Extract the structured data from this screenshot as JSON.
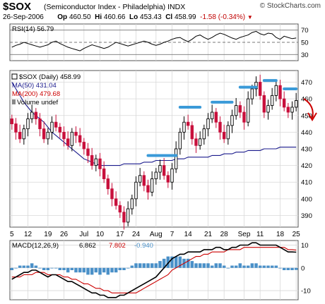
{
  "header": {
    "ticker": "$SOX",
    "name": "(Semiconductor Index - Philadelphia)",
    "exchange": "INDX",
    "brand": "© StockCharts.com",
    "date": "26-Sep-2006",
    "op_label": "Op",
    "op": "460.50",
    "hi_label": "Hi",
    "hi": "460.66",
    "lo_label": "Lo",
    "lo": "453.43",
    "cl_label": "Cl",
    "cl": "458.99",
    "change": "-1.58 (-0.34%)",
    "change_marker": "▼"
  },
  "colors": {
    "up": "#000000",
    "down": "#c8103c",
    "ma50": "#1a1a8c",
    "ma200": "#cc0000",
    "volume": "#3a8ac8",
    "macd": "#000000",
    "signal": "#cc0000",
    "hist": "#4a90c8",
    "annotation_blue": "#3a9ad8",
    "arrow": "#cc0000"
  },
  "chart_data": [
    {
      "type": "line",
      "panel": "rsi",
      "legend": "RSI(14) 56.79",
      "ylim": [
        20,
        80
      ],
      "yticks": [
        "70",
        "50",
        "30"
      ],
      "reference_levels": [
        70,
        50,
        30
      ],
      "values": [
        42,
        45,
        47,
        50,
        48,
        46,
        44,
        42,
        44,
        46,
        50,
        52,
        48,
        45,
        42,
        40,
        38,
        36,
        40,
        43,
        46,
        44,
        42,
        40,
        42,
        46,
        50,
        48,
        46,
        44,
        46,
        48,
        50,
        52,
        50,
        47,
        45,
        47,
        50,
        52,
        55,
        57,
        58,
        54,
        51,
        55,
        60,
        62,
        58,
        55,
        58,
        62,
        65,
        63,
        60,
        57,
        55,
        58,
        60,
        62,
        66,
        68,
        64,
        62,
        65,
        64,
        58,
        55,
        60,
        58,
        56,
        57
      ]
    },
    {
      "type": "candlestick",
      "panel": "price",
      "legend": [
        "$SOX (Daily) 458.99",
        "MA(50) 431.04",
        "MA(200) 479.68",
        "Volume undef"
      ],
      "ylim": [
        383,
        477
      ],
      "yticks": [
        "470",
        "460",
        "450",
        "440",
        "430",
        "420",
        "410",
        "400",
        "390"
      ],
      "xticks": [
        "5",
        "12",
        "19",
        "26",
        "Jul",
        "10",
        "17",
        "24",
        "Aug",
        "7",
        "14",
        "21",
        "28",
        "Sep",
        "11",
        "18",
        "25"
      ],
      "close": [
        445,
        440,
        436,
        442,
        448,
        452,
        448,
        442,
        436,
        440,
        446,
        443,
        440,
        436,
        432,
        440,
        438,
        434,
        430,
        426,
        420,
        424,
        418,
        412,
        406,
        400,
        396,
        392,
        386,
        394,
        400,
        410,
        414,
        408,
        404,
        412,
        416,
        420,
        414,
        410,
        418,
        430,
        440,
        446,
        444,
        436,
        432,
        436,
        442,
        448,
        452,
        446,
        440,
        436,
        444,
        450,
        456,
        452,
        446,
        460,
        466,
        470,
        462,
        452,
        456,
        462,
        468,
        460,
        455,
        452,
        455,
        459
      ],
      "ma50": [
        470,
        466,
        462,
        458,
        455,
        452,
        450,
        448,
        446,
        443,
        440,
        438,
        436,
        434,
        432,
        430,
        428,
        426,
        424,
        423,
        422,
        421,
        420,
        420,
        420,
        420,
        420,
        420,
        421,
        421,
        421,
        421,
        421,
        422,
        422,
        422,
        423,
        423,
        423,
        423,
        423,
        424,
        424,
        424,
        425,
        425,
        425,
        425,
        425,
        425,
        426,
        426,
        426,
        427,
        427,
        427,
        428,
        428,
        428,
        429,
        429,
        429,
        429,
        430,
        430,
        430,
        430,
        431,
        431,
        431,
        431,
        431
      ],
      "annotations": {
        "support_resistance_dashes": [
          {
            "x_start": 34,
            "x_end": 41,
            "y": 426
          },
          {
            "x_start": 42,
            "x_end": 47,
            "y": 455
          },
          {
            "x_start": 50,
            "x_end": 55,
            "y": 458
          },
          {
            "x_start": 57,
            "x_end": 61,
            "y": 467
          },
          {
            "x_start": 63,
            "x_end": 66,
            "y": 471
          },
          {
            "x_start": 68,
            "x_end": 71,
            "y": 466
          }
        ],
        "down_arrow": true
      }
    },
    {
      "type": "line",
      "panel": "macd",
      "legend": [
        "MACD(12,26,9)",
        "6.862",
        "7.802",
        "-0.940"
      ],
      "ylim": [
        -14,
        12
      ],
      "yticks": [
        "10",
        "0",
        "-10"
      ],
      "macd": [
        -5,
        -4,
        -3,
        -2,
        -2,
        -1,
        -1,
        -2,
        -3,
        -4,
        -3,
        -3,
        -4,
        -5,
        -6,
        -6,
        -7,
        -8,
        -9,
        -10,
        -11,
        -11,
        -12,
        -12,
        -13,
        -13,
        -13,
        -12,
        -12,
        -11,
        -10,
        -9,
        -8,
        -7,
        -6,
        -5,
        -4,
        -2,
        0,
        2,
        4,
        5,
        6,
        6,
        7,
        7,
        7,
        7,
        8,
        8,
        8,
        9,
        9,
        8,
        8,
        9,
        9,
        10,
        10,
        10,
        11,
        11,
        10,
        10,
        10,
        10,
        10,
        9,
        8,
        7,
        7,
        6.9
      ],
      "signal": [
        -4,
        -4,
        -4,
        -3,
        -3,
        -3,
        -2,
        -2,
        -2,
        -3,
        -3,
        -3,
        -3,
        -4,
        -4,
        -5,
        -5,
        -6,
        -7,
        -7,
        -8,
        -9,
        -9,
        -10,
        -10,
        -11,
        -11,
        -11,
        -11,
        -11,
        -11,
        -11,
        -10,
        -9,
        -8,
        -7,
        -6,
        -5,
        -4,
        -3,
        -1,
        0,
        1,
        2,
        3,
        4,
        5,
        5,
        6,
        6,
        7,
        7,
        7,
        7,
        8,
        8,
        8,
        8,
        9,
        9,
        9,
        9,
        9,
        9,
        9,
        9,
        9,
        9,
        9,
        8,
        8,
        7.8
      ],
      "histogram": [
        -1,
        0,
        1,
        1,
        1,
        2,
        1,
        0,
        -1,
        -1,
        0,
        0,
        -1,
        -1,
        -2,
        -1,
        -2,
        -2,
        -2,
        -3,
        -3,
        -2,
        -3,
        -2,
        -3,
        -2,
        -2,
        -1,
        -1,
        0,
        1,
        2,
        2,
        2,
        2,
        2,
        2,
        3,
        4,
        5,
        5,
        5,
        5,
        4,
        4,
        3,
        2,
        2,
        2,
        2,
        1,
        2,
        2,
        1,
        0,
        1,
        1,
        2,
        1,
        1,
        2,
        2,
        1,
        1,
        1,
        1,
        1,
        0,
        -1,
        -1,
        -1,
        -0.9
      ]
    }
  ]
}
